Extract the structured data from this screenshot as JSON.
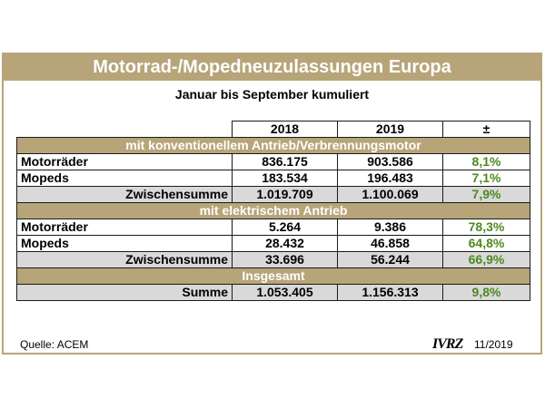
{
  "title": "Motorrad-/Mopedneuzulassungen Europa",
  "subtitle": "Januar bis September kumuliert",
  "columns": [
    "2018",
    "2019",
    "±"
  ],
  "sections": [
    {
      "heading": "mit konventionellem Antrieb/Verbrennungsmotor",
      "rows": [
        {
          "label": "Motorräder",
          "v2018": "836.175",
          "v2019": "903.586",
          "change": "8,1%"
        },
        {
          "label": "Mopeds",
          "v2018": "183.534",
          "v2019": "196.483",
          "change": "7,1%"
        },
        {
          "label": "Zwischensumme",
          "v2018": "1.019.709",
          "v2019": "1.100.069",
          "change": "7,9%"
        }
      ]
    },
    {
      "heading": "mit elektrischem Antrieb",
      "rows": [
        {
          "label": "Motorräder",
          "v2018": "5.264",
          "v2019": "9.386",
          "change": "78,3%"
        },
        {
          "label": "Mopeds",
          "v2018": "28.432",
          "v2019": "46.858",
          "change": "64,8%"
        },
        {
          "label": "Zwischensumme",
          "v2018": "33.696",
          "v2019": "56.244",
          "change": "66,9%"
        }
      ]
    },
    {
      "heading": "Insgesamt",
      "rows": [
        {
          "label": "Summe",
          "v2018": "1.053.405",
          "v2019": "1.156.313",
          "change": "9,8%"
        }
      ]
    }
  ],
  "footer": {
    "source": "Quelle: ACEM",
    "logo": "IVRZ",
    "issue": "11/2019"
  },
  "colors": {
    "accent": "#b7a579",
    "positive": "#4e8a1f",
    "subtotal_bg": "#d9d9d9"
  }
}
